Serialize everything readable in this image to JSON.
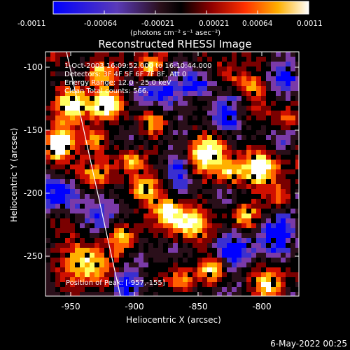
{
  "colorbar": {
    "ticks": [
      "-0.0011",
      "-0.00064",
      "-0.00021",
      "0.00021",
      "0.00064",
      "0.0011"
    ],
    "unit_label": "(photons cm⁻² s⁻¹ asec⁻²)"
  },
  "title": "Reconstructed RHESSI Image",
  "annotations": {
    "time_range": "1-Oct-2003 16:09:52.000 to 16:10:44.000",
    "detectors": "Detectors: 3F 4F 5F 6F 7F 8F, Att 0",
    "energy_range": "Energy Range: 12.0 - 25.0 keV",
    "clean": "Clean     Total counts: 566.",
    "peak": "Position of Peak: [-957,-155]"
  },
  "axes": {
    "xlabel": "Heliocentric X (arcsec)",
    "ylabel": "Heliocentric Y (arcsec)",
    "x_ticks": [
      "-950",
      "-900",
      "-850",
      "-800"
    ],
    "y_ticks": [
      "-100",
      "-150",
      "-200",
      "-250"
    ],
    "xlim": [
      -965,
      -793
    ],
    "ylim": [
      -282,
      -88
    ]
  },
  "footer_timestamp": "6-May-2022 00:25",
  "colors": {
    "colormap": [
      "#0000ff",
      "#3a2fd0",
      "#7a3aa8",
      "#2a0f1a",
      "#000000",
      "#7a0000",
      "#d01000",
      "#ff6000",
      "#ffb000",
      "#ffff60",
      "#ffffff"
    ],
    "background": "#000000",
    "text": "#ffffff"
  }
}
